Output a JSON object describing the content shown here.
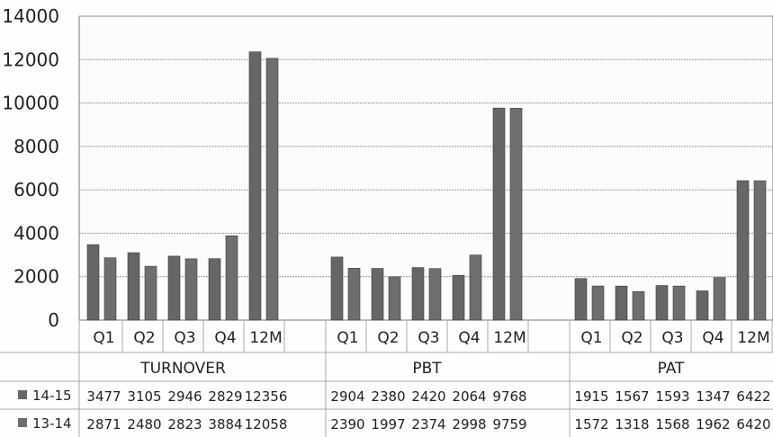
{
  "chart_data": {
    "type": "bar",
    "groups": [
      {
        "name": "TURNOVER",
        "categories": [
          "Q1",
          "Q2",
          "Q3",
          "Q4",
          "12M"
        ]
      },
      {
        "name": "PBT",
        "categories": [
          "Q1",
          "Q2",
          "Q3",
          "Q4",
          "12M"
        ]
      },
      {
        "name": "PAT",
        "categories": [
          "Q1",
          "Q2",
          "Q3",
          "Q4",
          "12M"
        ]
      }
    ],
    "series": [
      {
        "name": "14-15",
        "color": "#666666",
        "values": [
          [
            3477,
            3105,
            2946,
            2829,
            12356
          ],
          [
            2904,
            2380,
            2420,
            2064,
            9768
          ],
          [
            1915,
            1567,
            1593,
            1347,
            6422
          ]
        ]
      },
      {
        "name": "13-14",
        "color": "#6e6e6e",
        "values": [
          [
            2871,
            2480,
            2823,
            3884,
            12058
          ],
          [
            2390,
            1997,
            2374,
            2998,
            9759
          ],
          [
            1572,
            1318,
            1568,
            1962,
            6420
          ]
        ]
      }
    ],
    "ylim": [
      0,
      14000
    ],
    "yticks": [
      0,
      2000,
      4000,
      6000,
      8000,
      10000,
      12000,
      14000
    ],
    "grid": true,
    "legend": "data-table",
    "title": "",
    "xlabel": "",
    "ylabel": ""
  }
}
